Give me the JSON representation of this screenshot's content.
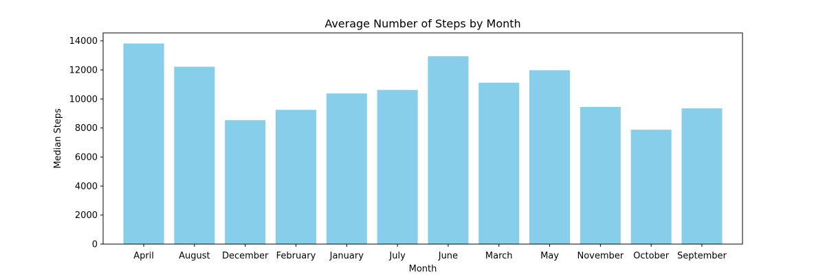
{
  "chart_data": {
    "type": "bar",
    "title": "Average Number of Steps by Month",
    "xlabel": "Month",
    "ylabel": "Median Steps",
    "categories": [
      "April",
      "August",
      "December",
      "February",
      "January",
      "July",
      "June",
      "March",
      "May",
      "November",
      "October",
      "September"
    ],
    "values": [
      13820,
      12220,
      8540,
      9250,
      10380,
      10620,
      12940,
      11120,
      11980,
      9450,
      7880,
      9350
    ],
    "ylim": [
      0,
      14550
    ],
    "yticks": [
      0,
      2000,
      4000,
      6000,
      8000,
      10000,
      12000,
      14000
    ],
    "ytick_labels": [
      "0",
      "2000",
      "4000",
      "6000",
      "8000",
      "10000",
      "12000",
      "14000"
    ],
    "bar_color": "#87CEEB",
    "grid": false,
    "legend": false
  }
}
